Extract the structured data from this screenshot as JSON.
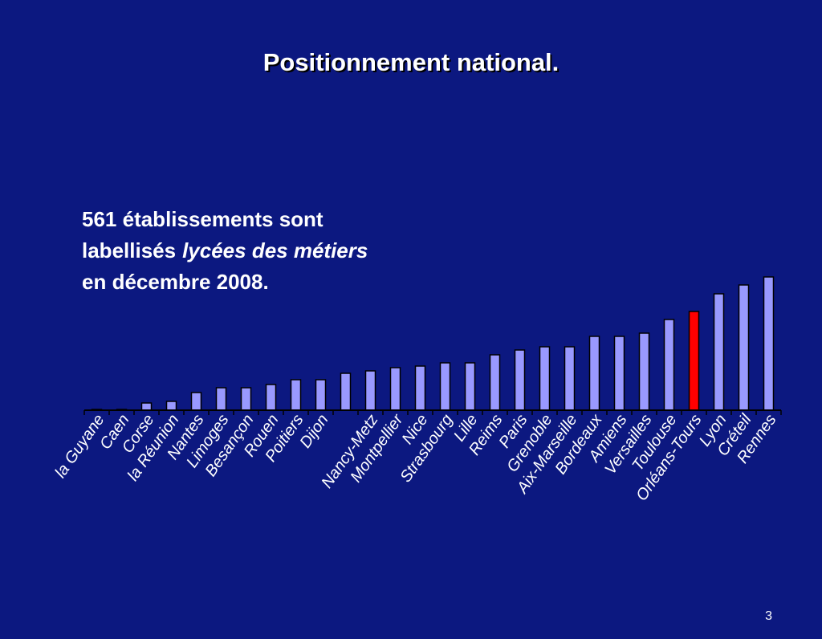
{
  "chart_data": {
    "type": "bar",
    "title": "Positionnement national.",
    "annotation": {
      "line1": "561 établissements sont",
      "line2": "labellisés",
      "line2_italic": "lycées des métiers",
      "line3": "en décembre 2008."
    },
    "page_number": "3",
    "categories": [
      "la Guyane",
      "Caen",
      "Corse",
      "la Réunion",
      "Nantes",
      "Limoges",
      "Besançon",
      "Rouen",
      "Poitiers",
      "Dijon",
      null,
      "Nancy-Metz",
      "Montpellier",
      "Nice",
      "Strasbourg",
      "Lille",
      "Reims",
      "Paris",
      "Grenoble",
      "Aix-Marseille",
      "Bordeaux",
      "Amiens",
      "Versailles",
      "Toulouse",
      "Orléans-Tours",
      "Lyon",
      "Créteil",
      "Rennes"
    ],
    "values": [
      1,
      1,
      9,
      11,
      22,
      28,
      28,
      32,
      38,
      38,
      46,
      49,
      53,
      55,
      59,
      59,
      69,
      75,
      79,
      79,
      92,
      92,
      96,
      113,
      123,
      145,
      156,
      166
    ],
    "colors": [
      "#9999ff",
      "#9999ff",
      "#9999ff",
      "#9999ff",
      "#9999ff",
      "#9999ff",
      "#9999ff",
      "#9999ff",
      "#9999ff",
      "#9999ff",
      "#9999ff",
      "#9999ff",
      "#9999ff",
      "#9999ff",
      "#9999ff",
      "#9999ff",
      "#9999ff",
      "#9999ff",
      "#9999ff",
      "#9999ff",
      "#9999ff",
      "#9999ff",
      "#9999ff",
      "#9999ff",
      "#ff0000",
      "#9999ff",
      "#9999ff",
      "#9999ff"
    ],
    "ylim": [
      0,
      170
    ]
  }
}
